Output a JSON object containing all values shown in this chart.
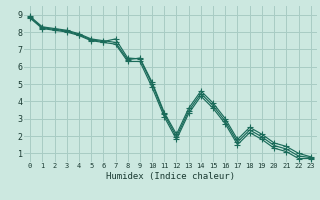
{
  "xlabel": "Humidex (Indice chaleur)",
  "bg_color": "#cce8e0",
  "grid_color": "#a8ccc4",
  "line_color": "#1a6b5a",
  "xlim": [
    -0.5,
    23.5
  ],
  "ylim": [
    0.5,
    9.5
  ],
  "xticks": [
    0,
    1,
    2,
    3,
    4,
    5,
    6,
    7,
    8,
    9,
    10,
    11,
    12,
    13,
    14,
    15,
    16,
    17,
    18,
    19,
    20,
    21,
    22,
    23
  ],
  "yticks": [
    1,
    2,
    3,
    4,
    5,
    6,
    7,
    8,
    9
  ],
  "series1_y": [
    8.8,
    8.2,
    8.1,
    8.0,
    7.8,
    7.5,
    7.4,
    7.3,
    6.3,
    6.3,
    4.8,
    3.1,
    1.8,
    3.3,
    4.3,
    3.6,
    2.7,
    1.5,
    2.2,
    1.8,
    1.3,
    1.1,
    0.7,
    0.7
  ],
  "series2_y": [
    8.85,
    8.25,
    8.15,
    8.05,
    7.85,
    7.55,
    7.45,
    7.6,
    6.5,
    6.45,
    5.0,
    3.25,
    1.95,
    3.45,
    4.45,
    3.75,
    2.85,
    1.65,
    2.35,
    1.95,
    1.45,
    1.25,
    0.85,
    0.75
  ],
  "series3_y": [
    8.9,
    8.3,
    8.2,
    8.1,
    7.9,
    7.6,
    7.5,
    7.4,
    6.4,
    6.5,
    5.1,
    3.35,
    2.1,
    3.6,
    4.6,
    3.9,
    3.0,
    1.8,
    2.5,
    2.1,
    1.6,
    1.4,
    1.0,
    0.8
  ]
}
